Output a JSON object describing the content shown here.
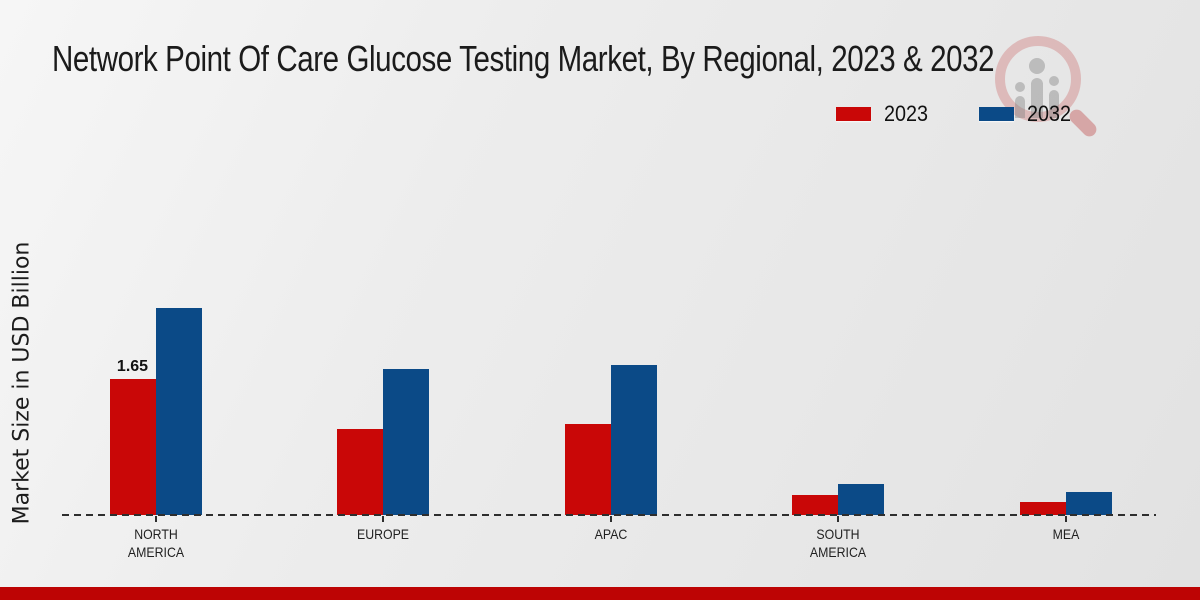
{
  "title": "Network Point Of Care Glucose Testing Market, By Regional, 2023 & 2032",
  "legend": {
    "items": [
      {
        "label": "2023",
        "color": "#c90707"
      },
      {
        "label": "2032",
        "color": "#0b4a87"
      }
    ]
  },
  "chart_data": {
    "type": "bar",
    "title": "Network Point Of Care Glucose Testing Market, By Regional, 2023 & 2032",
    "xlabel": "",
    "ylabel": "Market Size in USD Billion",
    "categories": [
      "NORTH AMERICA",
      "EUROPE",
      "APAC",
      "SOUTH AMERICA",
      "MEA"
    ],
    "series": [
      {
        "name": "2023",
        "color": "#c90707",
        "values": [
          1.65,
          1.04,
          1.1,
          0.24,
          0.16
        ],
        "point_labels": [
          "1.65",
          null,
          null,
          null,
          null
        ]
      },
      {
        "name": "2032",
        "color": "#0b4a87",
        "values": [
          2.51,
          1.77,
          1.82,
          0.38,
          0.28
        ],
        "point_labels": [
          null,
          null,
          null,
          null,
          null
        ]
      }
    ],
    "ylim": [
      0,
      3.3
    ],
    "grid": false,
    "legend_position": "upper right",
    "baseline_style": "dashed",
    "y_axis_ticks_visible": false
  },
  "watermark": {
    "name": "market-research-magnifier-logo"
  },
  "footer": {
    "bar_color": "#bd0404"
  }
}
